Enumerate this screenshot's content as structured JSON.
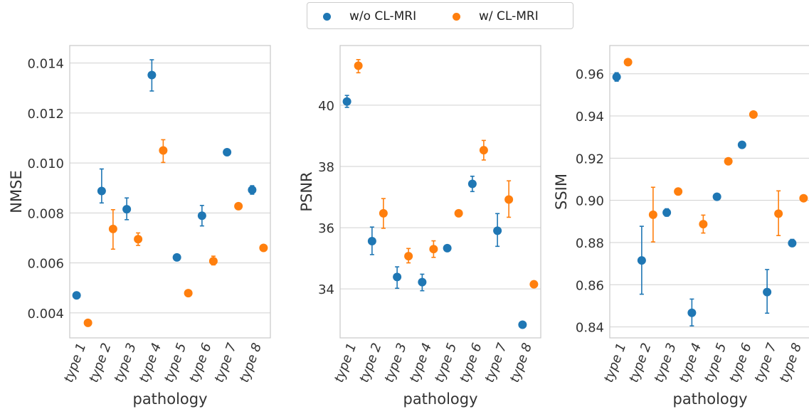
{
  "colors": {
    "wo": "#1f77b4",
    "w": "#ff7f0e",
    "grid": "#d0d0d0",
    "frame": "#c8c8c8"
  },
  "legend": {
    "items": [
      {
        "label": "w/o CL-MRI"
      },
      {
        "label": "w/ CL-MRI"
      }
    ],
    "placement": "top-center"
  },
  "chart_data": [
    {
      "type": "scatter",
      "ylabel": "NMSE",
      "xlabel": "pathology",
      "categories": [
        "type 1",
        "type 2",
        "type 3",
        "type 4",
        "type 5",
        "type 6",
        "type 7",
        "type 8"
      ],
      "ylim": [
        0.003,
        0.0147
      ],
      "yticks": [
        0.004,
        0.006,
        0.008,
        0.01,
        0.012,
        0.014
      ],
      "ytick_labels": [
        "0.004",
        "0.006",
        "0.008",
        "0.010",
        "0.012",
        "0.014"
      ],
      "grid": "horizontal",
      "series": [
        {
          "name": "w/o CL-MRI",
          "values": [
            0.0047,
            0.00888,
            0.00815,
            0.01352,
            0.00622,
            0.00789,
            0.01043,
            0.00892
          ],
          "err_low": [
            0.0047,
            0.0084,
            0.00773,
            0.01288,
            0.00622,
            0.00748,
            0.01043,
            0.00875
          ],
          "err_high": [
            0.0047,
            0.00976,
            0.0086,
            0.01413,
            0.00622,
            0.0083,
            0.01043,
            0.00909
          ]
        },
        {
          "name": "w/ CL-MRI",
          "values": [
            0.0036,
            0.00736,
            0.00695,
            0.0105,
            0.00479,
            0.00607,
            0.00827,
            0.0066
          ],
          "err_low": [
            0.0036,
            0.00655,
            0.0067,
            0.01002,
            0.00479,
            0.00592,
            0.00817,
            0.0066
          ],
          "err_high": [
            0.0036,
            0.00813,
            0.0072,
            0.01093,
            0.00479,
            0.00627,
            0.00837,
            0.0066
          ]
        }
      ]
    },
    {
      "type": "scatter",
      "ylabel": "PSNR",
      "xlabel": "pathology",
      "categories": [
        "type 1",
        "type 2",
        "type 3",
        "type 4",
        "type 5",
        "type 6",
        "type 7",
        "type 8"
      ],
      "ylim": [
        32.4,
        41.95
      ],
      "yticks": [
        34,
        36,
        38,
        40
      ],
      "ytick_labels": [
        "34",
        "36",
        "38",
        "40"
      ],
      "grid": "horizontal",
      "series": [
        {
          "name": "w/o CL-MRI",
          "values": [
            40.12,
            35.56,
            34.39,
            34.22,
            35.33,
            37.43,
            35.9,
            32.83
          ],
          "err_low": [
            39.93,
            35.12,
            34.02,
            33.94,
            35.33,
            37.18,
            35.39,
            32.83
          ],
          "err_high": [
            40.32,
            36.02,
            34.72,
            34.48,
            35.33,
            37.68,
            36.46,
            32.83
          ]
        },
        {
          "name": "w/ CL-MRI",
          "values": [
            41.29,
            36.47,
            35.07,
            35.3,
            36.47,
            38.53,
            36.92,
            34.15
          ],
          "err_low": [
            41.06,
            35.98,
            34.85,
            35.03,
            36.47,
            38.21,
            36.34,
            34.15
          ],
          "err_high": [
            41.49,
            36.95,
            35.32,
            35.57,
            36.47,
            38.85,
            37.53,
            34.15
          ]
        }
      ]
    },
    {
      "type": "scatter",
      "ylabel": "SSIM",
      "xlabel": "pathology",
      "categories": [
        "type 1",
        "type 2",
        "type 3",
        "type 4",
        "type 5",
        "type 6",
        "type 7",
        "type 8"
      ],
      "ylim": [
        0.8348,
        0.9734
      ],
      "yticks": [
        0.84,
        0.86,
        0.88,
        0.9,
        0.92,
        0.94,
        0.96
      ],
      "ytick_labels": [
        "0.84",
        "0.86",
        "0.88",
        "0.90",
        "0.92",
        "0.94",
        "0.96"
      ],
      "grid": "horizontal",
      "series": [
        {
          "name": "w/o CL-MRI",
          "values": [
            0.9585,
            0.8715,
            0.8942,
            0.8467,
            0.9017,
            0.9263,
            0.8565,
            0.8797
          ],
          "err_low": [
            0.9565,
            0.8555,
            0.8925,
            0.8405,
            0.9017,
            0.9263,
            0.8465,
            0.8785
          ],
          "err_high": [
            0.9605,
            0.8877,
            0.896,
            0.8532,
            0.9017,
            0.9263,
            0.8672,
            0.8815
          ]
        },
        {
          "name": "w/ CL-MRI",
          "values": [
            0.9655,
            0.8932,
            0.9042,
            0.8887,
            0.9185,
            0.9407,
            0.8937,
            0.901
          ],
          "err_low": [
            0.9642,
            0.8803,
            0.9042,
            0.8845,
            0.9185,
            0.9407,
            0.8833,
            0.901
          ],
          "err_high": [
            0.9668,
            0.9062,
            0.9042,
            0.893,
            0.9185,
            0.9407,
            0.9045,
            0.901
          ]
        }
      ]
    }
  ]
}
